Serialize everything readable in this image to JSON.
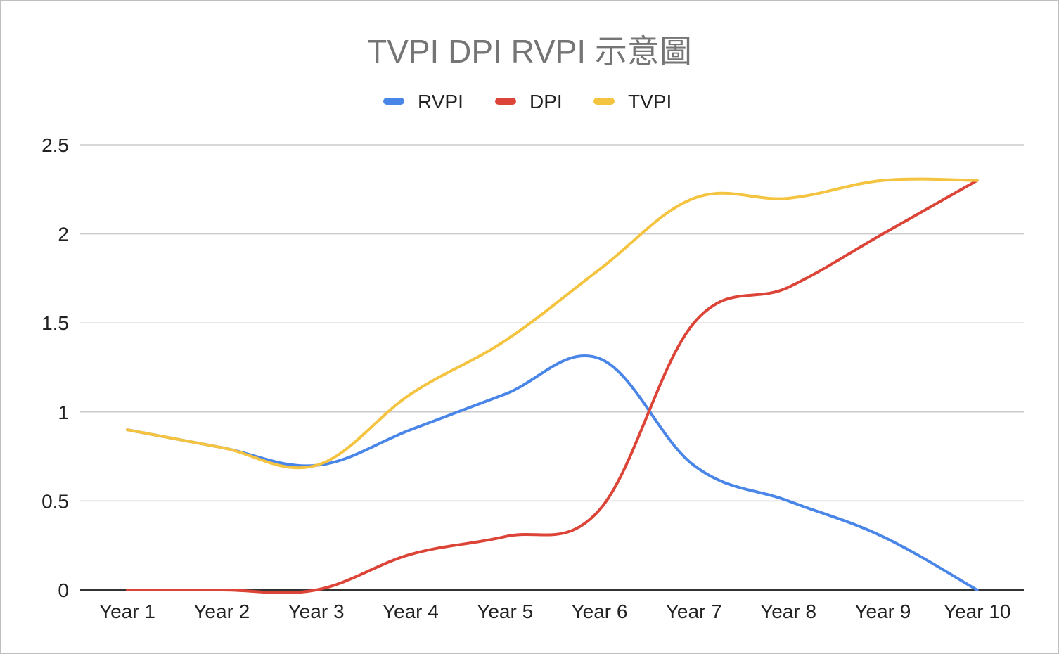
{
  "chart_data": {
    "type": "line",
    "title": "TVPI DPI RVPI 示意圖",
    "xlabel": "",
    "ylabel": "",
    "categories": [
      "Year 1",
      "Year 2",
      "Year 3",
      "Year 4",
      "Year 5",
      "Year 6",
      "Year 7",
      "Year 8",
      "Year 9",
      "Year 10"
    ],
    "ylim": [
      0,
      2.5
    ],
    "yticks": [
      "0",
      "0.5",
      "1",
      "1.5",
      "2",
      "2.5"
    ],
    "grid": true,
    "legend_position": "top",
    "smooth": true,
    "series": [
      {
        "name": "RVPI",
        "color": "#4a86e8",
        "values": [
          0.9,
          0.8,
          0.7,
          0.9,
          1.1,
          1.3,
          0.7,
          0.5,
          0.3,
          0.0
        ]
      },
      {
        "name": "DPI",
        "color": "#db4437",
        "values": [
          0.0,
          0.0,
          0.0,
          0.2,
          0.3,
          0.45,
          1.5,
          1.7,
          2.0,
          2.3
        ]
      },
      {
        "name": "TVPI",
        "color": "#f4c33f",
        "values": [
          0.9,
          0.8,
          0.7,
          1.1,
          1.4,
          1.8,
          2.2,
          2.2,
          2.3,
          2.3
        ]
      }
    ]
  }
}
